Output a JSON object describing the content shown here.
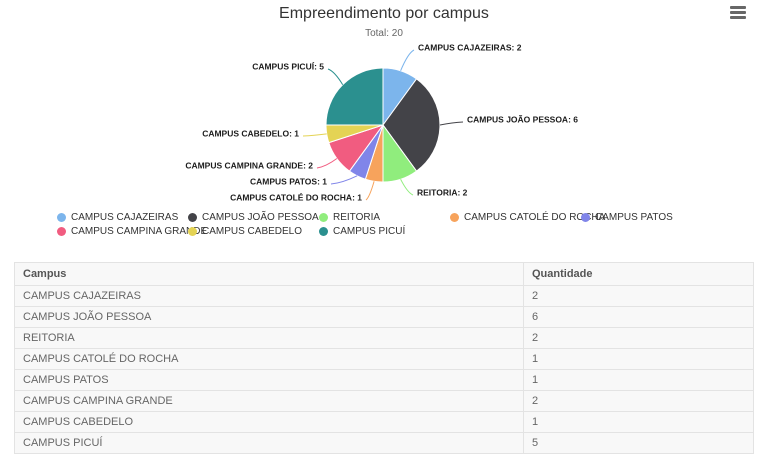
{
  "chart": {
    "title": "Empreendimento por campus",
    "subtitle": "Total: 20",
    "menu_icon": "hamburger-menu-icon"
  },
  "chart_data": {
    "type": "pie",
    "title": "Empreendimento por campus",
    "subtitle": "Total: 20",
    "total": 20,
    "data_labels": true,
    "label_format": "name: value",
    "legend_position": "bottom",
    "series": [
      {
        "name": "CAMPUS CAJAZEIRAS",
        "value": 2,
        "color": "#7cb5ec"
      },
      {
        "name": "CAMPUS JOÃO PESSOA",
        "value": 6,
        "color": "#434348"
      },
      {
        "name": "REITORIA",
        "value": 2,
        "color": "#90ed7d"
      },
      {
        "name": "CAMPUS CATOLÉ DO ROCHA",
        "value": 1,
        "color": "#f7a35c"
      },
      {
        "name": "CAMPUS PATOS",
        "value": 1,
        "color": "#8085e9"
      },
      {
        "name": "CAMPUS CAMPINA GRANDE",
        "value": 2,
        "color": "#f15c80"
      },
      {
        "name": "CAMPUS CABEDELO",
        "value": 1,
        "color": "#e4d354"
      },
      {
        "name": "CAMPUS PICUÍ",
        "value": 5,
        "color": "#2b908f"
      }
    ]
  },
  "table": {
    "headers": [
      "Campus",
      "Quantidade"
    ],
    "rows": [
      [
        "CAMPUS CAJAZEIRAS",
        "2"
      ],
      [
        "CAMPUS JOÃO PESSOA",
        "6"
      ],
      [
        "REITORIA",
        "2"
      ],
      [
        "CAMPUS CATOLÉ DO ROCHA",
        "1"
      ],
      [
        "CAMPUS PATOS",
        "1"
      ],
      [
        "CAMPUS CAMPINA GRANDE",
        "2"
      ],
      [
        "CAMPUS CABEDELO",
        "1"
      ],
      [
        "CAMPUS PICUÍ",
        "5"
      ]
    ]
  }
}
